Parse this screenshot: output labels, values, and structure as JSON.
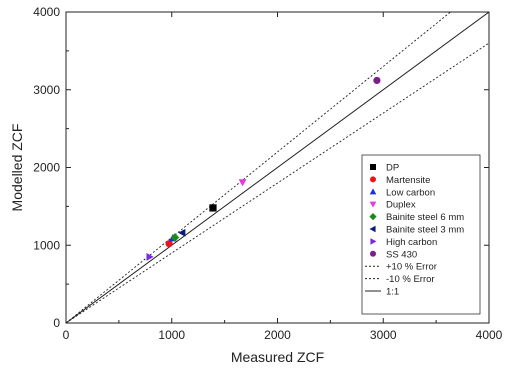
{
  "chart_data": {
    "type": "scatter",
    "xlabel": "Measured ZCF",
    "ylabel": "Modelled ZCF",
    "xlim": [
      0,
      4000
    ],
    "ylim": [
      0,
      4000
    ],
    "x_ticks": [
      "0",
      "1000",
      "2000",
      "3000",
      "4000"
    ],
    "y_ticks": [
      "0",
      "1000",
      "2000",
      "3000",
      "4000"
    ],
    "legend_position": "lower-right",
    "series": [
      {
        "name": "DP",
        "marker": "square",
        "color": "#000000",
        "points": [
          [
            1390,
            1480
          ]
        ]
      },
      {
        "name": "Martensite",
        "marker": "circle",
        "color": "#e8161c",
        "points": [
          [
            975,
            1020
          ]
        ]
      },
      {
        "name": "Low carbon",
        "marker": "triangle-up",
        "color": "#1f2fe0",
        "points": [
          [
            1010,
            1090
          ]
        ]
      },
      {
        "name": "Duplex",
        "marker": "triangle-down",
        "color": "#e838e8",
        "points": [
          [
            1670,
            1810
          ]
        ]
      },
      {
        "name": "Bainite steel 6 mm",
        "marker": "diamond",
        "color": "#1a8a1a",
        "points": [
          [
            1030,
            1100
          ]
        ]
      },
      {
        "name": "Bainite steel 3 mm",
        "marker": "triangle-left",
        "color": "#0a1a78",
        "points": [
          [
            1100,
            1160
          ]
        ]
      },
      {
        "name": "High carbon",
        "marker": "triangle-right",
        "color": "#7a2be0",
        "points": [
          [
            790,
            850
          ]
        ]
      },
      {
        "name": "SS 430",
        "marker": "circle",
        "color": "#7a1f8a",
        "points": [
          [
            2940,
            3120
          ]
        ]
      }
    ],
    "reference_lines": [
      {
        "name": "+10 % Error",
        "style": "dotted",
        "slope": 1.1
      },
      {
        "name": "-10 % Error",
        "style": "dotted",
        "slope": 0.9
      },
      {
        "name": "1:1",
        "style": "solid",
        "slope": 1.0
      }
    ]
  }
}
